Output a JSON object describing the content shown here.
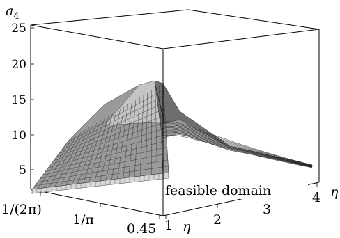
{
  "chart_data": {
    "type": "surface",
    "title": "",
    "zlabel": "a_4",
    "xlabel": "η",
    "ylabel": "",
    "z_ticks": [
      "5",
      "10",
      "15",
      "20",
      "25"
    ],
    "z_range": [
      2,
      26
    ],
    "x_ticks": [
      "1",
      "2",
      "3",
      "4"
    ],
    "x_range": [
      1,
      4
    ],
    "y_ticks": [
      "1/(2π)",
      "1/π",
      "0.45"
    ],
    "y_range": [
      0.159,
      0.45
    ],
    "surface": {
      "ridge_eta": 1,
      "ridge_peak_a4": 17.5,
      "ridge_start_a4": 2.5,
      "tail_end_a4": 6.5
    },
    "annotations": [
      {
        "text": "feasible domain"
      }
    ]
  },
  "labels": {
    "z_axis": "a",
    "z_axis_sub": "4",
    "eta_front": "η",
    "eta_right": "η",
    "feasible": "feasible domain"
  }
}
